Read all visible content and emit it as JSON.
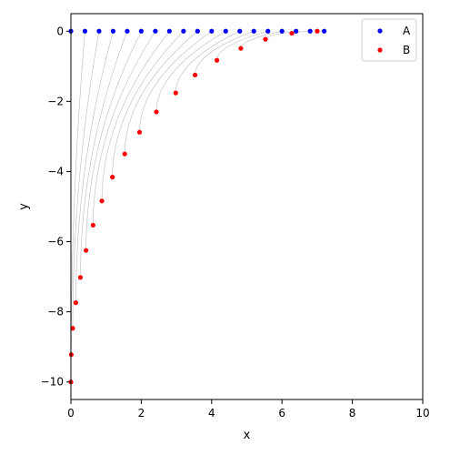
{
  "chart_data": {
    "type": "scatter",
    "xlabel": "x",
    "ylabel": "y",
    "xlim": [
      0,
      10
    ],
    "ylim": [
      -10.5,
      0.5
    ],
    "xticks": [
      0,
      2,
      4,
      6,
      8,
      10
    ],
    "yticks": [
      0,
      -2,
      -4,
      -6,
      -8,
      -10
    ],
    "xtick_labels": [
      "0",
      "2",
      "4",
      "6",
      "8",
      "10"
    ],
    "ytick_labels": [
      "0",
      "−2",
      "−4",
      "−6",
      "−8",
      "−10"
    ],
    "grid": false,
    "legend_position": "top-right",
    "connector_color": "#bbbbbb",
    "series": [
      {
        "name": "A",
        "color": "#0000ff",
        "points": [
          [
            0,
            0
          ],
          [
            0.4,
            0
          ],
          [
            0.8,
            0
          ],
          [
            1.2,
            0
          ],
          [
            1.6,
            0
          ],
          [
            2.0,
            0
          ],
          [
            2.4,
            0
          ],
          [
            2.8,
            0
          ],
          [
            3.2,
            0
          ],
          [
            3.6,
            0
          ],
          [
            4.0,
            0
          ],
          [
            4.4,
            0
          ],
          [
            4.8,
            0
          ],
          [
            5.2,
            0
          ],
          [
            5.6,
            0
          ],
          [
            6.0,
            0
          ],
          [
            6.4,
            0
          ],
          [
            6.8,
            0
          ],
          [
            7.2,
            0
          ]
        ]
      },
      {
        "name": "B",
        "color": "#ff0000",
        "points": [
          [
            0.0,
            -10.0
          ],
          [
            0.01,
            -9.22
          ],
          [
            0.05,
            -8.47
          ],
          [
            0.14,
            -7.74
          ],
          [
            0.27,
            -7.02
          ],
          [
            0.43,
            -6.25
          ],
          [
            0.63,
            -5.53
          ],
          [
            0.88,
            -4.84
          ],
          [
            1.18,
            -4.16
          ],
          [
            1.53,
            -3.5
          ],
          [
            1.95,
            -2.88
          ],
          [
            2.43,
            -2.3
          ],
          [
            2.98,
            -1.76
          ],
          [
            3.53,
            -1.25
          ],
          [
            4.15,
            -0.83
          ],
          [
            4.83,
            -0.49
          ],
          [
            5.53,
            -0.23
          ],
          [
            6.28,
            -0.06
          ],
          [
            7.0,
            0.0
          ]
        ]
      }
    ]
  }
}
